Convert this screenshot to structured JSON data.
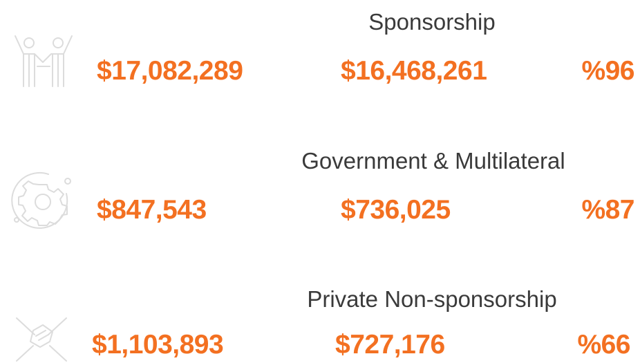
{
  "rows": [
    {
      "title": "Sponsorship",
      "values": [
        "$17,082,289",
        "$16,468,261",
        "%96"
      ]
    },
    {
      "title": "Government & Multilateral",
      "values": [
        "$847,543",
        "$736,025",
        "%87"
      ]
    },
    {
      "title": "Private Non-sponsorship",
      "values": [
        "$1,103,893",
        "$727,176",
        "%66"
      ]
    }
  ]
}
